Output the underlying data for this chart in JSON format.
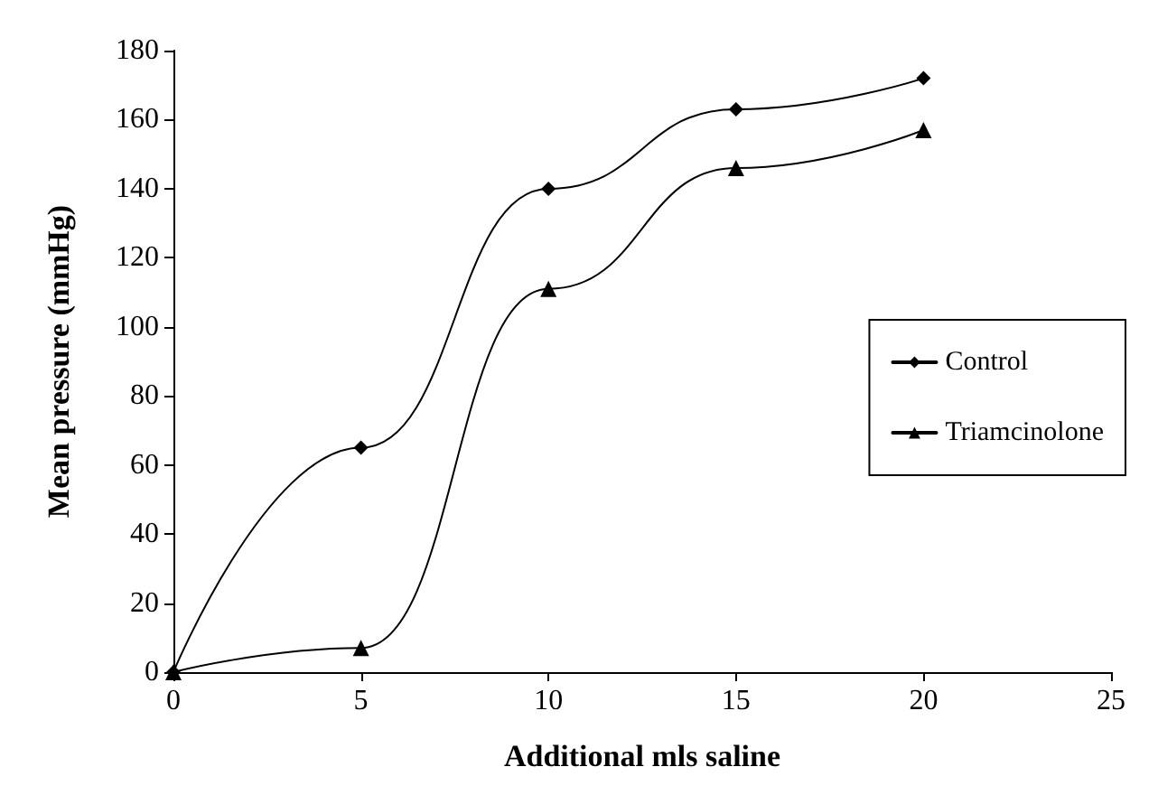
{
  "chart_data": {
    "type": "line",
    "xlabel": "Additional mls saline",
    "ylabel": "Mean pressure (mmHg)",
    "x": [
      0,
      5,
      10,
      15,
      20
    ],
    "series": [
      {
        "name": "Control",
        "color": "#000000",
        "values": [
          0,
          65,
          140,
          163,
          172
        ],
        "marker": "diamond"
      },
      {
        "name": "Triamcinolone",
        "color": "#000000",
        "values": [
          0,
          7,
          111,
          146,
          157
        ],
        "marker": "triangle"
      }
    ],
    "xlim": [
      0,
      25
    ],
    "xticks": [
      0,
      5,
      10,
      15,
      20,
      25
    ],
    "ylim": [
      0,
      180
    ],
    "yticks": [
      0,
      20,
      40,
      60,
      80,
      100,
      120,
      140,
      160,
      180
    ],
    "grid": false,
    "legend": "right",
    "line_style": "solid"
  }
}
